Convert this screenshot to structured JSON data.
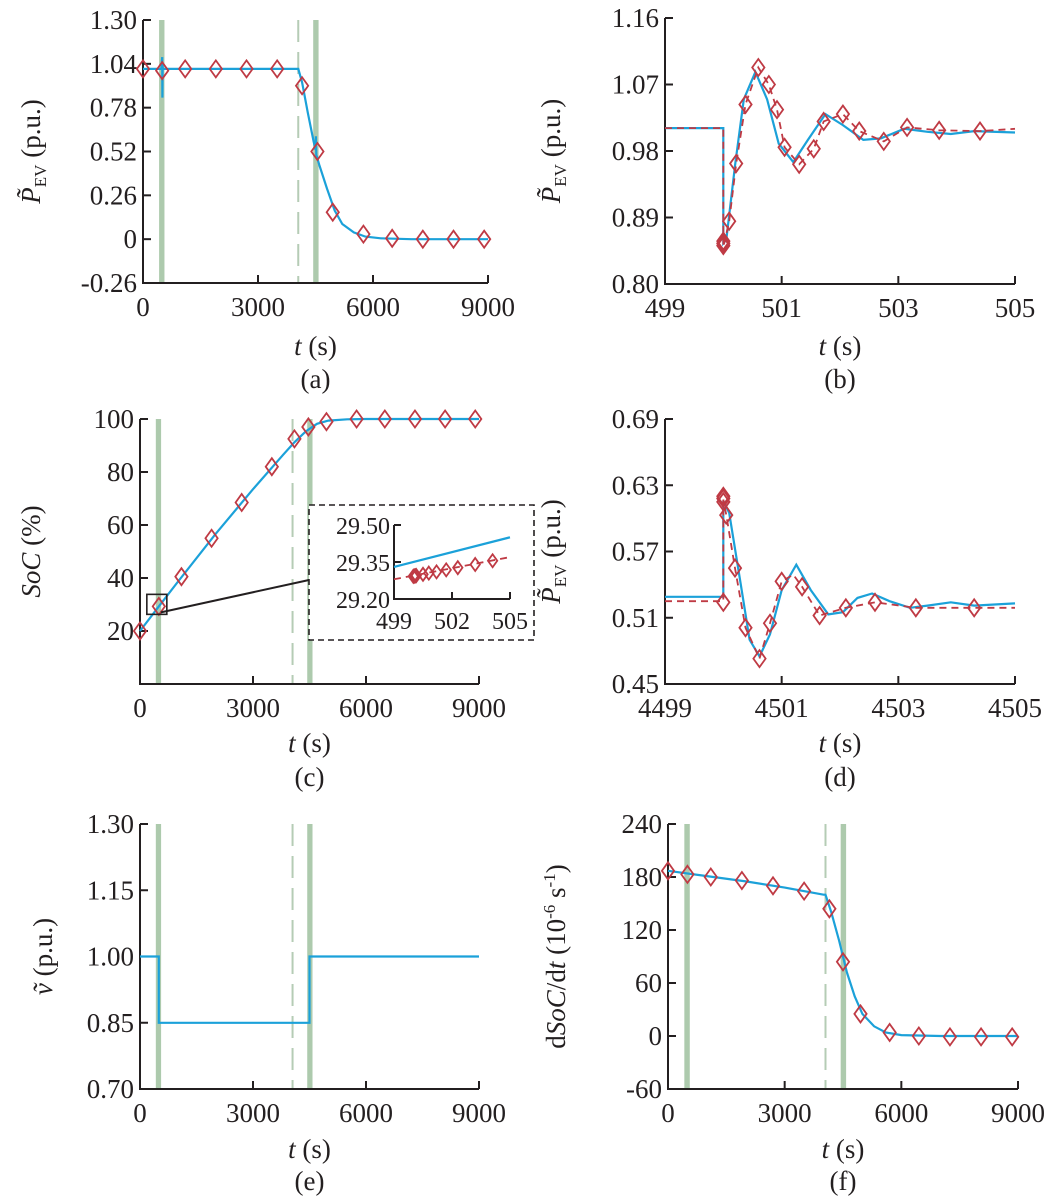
{
  "figure": {
    "colors": {
      "simulation_line": "#1ba1d9",
      "reference_line_markers": "#bf3a44",
      "event_band": "#a9c7a9",
      "event_dash": "#b5ccb5",
      "axes": "#231f20"
    }
  },
  "chart_data": [
    {
      "id": "a",
      "type": "line",
      "caption": "(a)",
      "xlabel": "t (s)",
      "ylabel": "P̃_EV (p.u.)",
      "xlim": [
        0,
        9000
      ],
      "ylim": [
        -0.26,
        1.3
      ],
      "xticks": [
        0,
        3000,
        6000,
        9000
      ],
      "xtick_labels": [
        "0",
        "3000",
        "6000",
        "9000"
      ],
      "yticks": [
        -0.26,
        0,
        0.26,
        0.52,
        0.78,
        1.04,
        1.3
      ],
      "ytick_labels": [
        "-0.26",
        "0",
        "0.26",
        "0.52",
        "0.78",
        "1.04",
        "1.30"
      ],
      "event_bands": [
        [
          420,
          560
        ],
        [
          4440,
          4580
        ]
      ],
      "event_dashes": [
        4050
      ],
      "series": [
        {
          "name": "simulation",
          "style": "solid",
          "x": [
            0,
            480,
            500,
            505,
            510,
            520,
            540,
            4050,
            4150,
            4300,
            4450,
            4500,
            4510,
            4520,
            4600,
            4800,
            5000,
            5200,
            5500,
            5800,
            6200,
            7000,
            8000,
            9000
          ],
          "y": [
            1.01,
            1.01,
            1.08,
            0.84,
            1.03,
            1.01,
            1.01,
            1.01,
            0.93,
            0.75,
            0.58,
            0.53,
            0.61,
            0.5,
            0.44,
            0.3,
            0.17,
            0.09,
            0.04,
            0.015,
            0.005,
            0.0,
            0.0,
            0.0
          ]
        },
        {
          "name": "reference",
          "style": "markers",
          "x": [
            0,
            500,
            1100,
            1900,
            2700,
            3500,
            4150,
            4550,
            4950,
            5750,
            6500,
            7300,
            8100,
            8900
          ],
          "y": [
            1.01,
            1.0,
            1.01,
            1.01,
            1.01,
            1.01,
            0.91,
            0.52,
            0.16,
            0.03,
            0.005,
            0.0,
            0.0,
            0.0
          ]
        }
      ]
    },
    {
      "id": "b",
      "type": "line",
      "caption": "(b)",
      "xlabel": "t (s)",
      "ylabel": "P̃_EV (p.u.)",
      "xlim": [
        499,
        505
      ],
      "ylim": [
        0.8,
        1.16
      ],
      "xticks": [
        499,
        501,
        503,
        505
      ],
      "xtick_labels": [
        "499",
        "501",
        "503",
        "505"
      ],
      "yticks": [
        0.8,
        0.89,
        0.98,
        1.07,
        1.16
      ],
      "ytick_labels": [
        "0.80",
        "0.89",
        "0.98",
        "1.07",
        "1.16"
      ],
      "series": [
        {
          "name": "simulation",
          "style": "solid",
          "x": [
            499,
            500.0,
            500.0,
            500.05,
            500.2,
            500.35,
            500.55,
            500.75,
            500.95,
            501.2,
            501.45,
            501.75,
            502.05,
            502.4,
            502.7,
            503.1,
            503.5,
            503.9,
            504.3,
            505
          ],
          "y": [
            1.011,
            1.011,
            0.855,
            0.86,
            0.96,
            1.05,
            1.087,
            1.05,
            0.99,
            0.965,
            0.995,
            1.03,
            1.015,
            0.995,
            0.997,
            1.01,
            1.006,
            1.003,
            1.007,
            1.005
          ]
        },
        {
          "name": "reference",
          "style": "dashed+markers",
          "x": [
            499,
            500.0,
            500.0,
            500.1,
            500.22,
            500.38,
            500.6,
            500.78,
            500.92,
            501.05,
            501.3,
            501.55,
            501.72,
            502.05,
            502.33,
            502.75,
            503.15,
            503.7,
            504.4,
            505
          ],
          "y": [
            1.011,
            1.011,
            0.85,
            0.885,
            0.963,
            1.043,
            1.093,
            1.07,
            1.036,
            0.985,
            0.962,
            0.983,
            1.02,
            1.03,
            1.007,
            0.993,
            1.012,
            1.008,
            1.007,
            1.01
          ],
          "marker_x": [
            500.0,
            500.0,
            500.0,
            500.1,
            500.22,
            500.38,
            500.6,
            500.78,
            500.92,
            501.05,
            501.3,
            501.55,
            501.72,
            502.05,
            502.33,
            502.75,
            503.15,
            503.7,
            504.4
          ],
          "marker_y": [
            0.852,
            0.855,
            0.858,
            0.885,
            0.963,
            1.043,
            1.093,
            1.07,
            1.036,
            0.985,
            0.962,
            0.983,
            1.02,
            1.03,
            1.007,
            0.993,
            1.012,
            1.008,
            1.007
          ]
        }
      ]
    },
    {
      "id": "c",
      "type": "line",
      "caption": "(c)",
      "xlabel": "t (s)",
      "ylabel": "SoC (%)",
      "xlim": [
        0,
        9000
      ],
      "ylim": [
        0,
        100
      ],
      "xticks": [
        0,
        3000,
        6000,
        9000
      ],
      "xtick_labels": [
        "0",
        "3000",
        "6000",
        "9000"
      ],
      "yticks": [
        20,
        40,
        60,
        80,
        100
      ],
      "ytick_labels": [
        "20",
        "40",
        "60",
        "80",
        "100"
      ],
      "event_bands": [
        [
          420,
          560
        ],
        [
          4440,
          4580
        ]
      ],
      "event_dashes": [
        4050
      ],
      "series": [
        {
          "name": "simulation",
          "style": "solid",
          "x": [
            0,
            500,
            1000,
            2000,
            3000,
            3800,
            4100,
            4400,
            4700,
            5000,
            5500,
            6000,
            9000
          ],
          "y": [
            20,
            29.3,
            38.5,
            56.5,
            73.5,
            86.5,
            91.2,
            95.3,
            98.2,
            99.4,
            99.9,
            100,
            100
          ]
        },
        {
          "name": "reference",
          "style": "markers",
          "x": [
            0,
            500,
            1100,
            1900,
            2700,
            3500,
            4100,
            4470,
            4950,
            5750,
            6500,
            7300,
            8100,
            8900
          ],
          "y": [
            20,
            29.3,
            40.5,
            55,
            68.5,
            82,
            92.5,
            97,
            99,
            100,
            100,
            100,
            100,
            100
          ]
        }
      ],
      "inset": {
        "xlim": [
          499,
          505
        ],
        "ylim": [
          29.2,
          29.5
        ],
        "xticks": [
          499,
          502,
          505
        ],
        "xtick_labels": [
          "499",
          "502",
          "505"
        ],
        "yticks": [
          29.2,
          29.35,
          29.5
        ],
        "ytick_labels": [
          "29.20",
          "29.35",
          "29.50"
        ],
        "series": [
          {
            "name": "simulation",
            "style": "solid",
            "x": [
              499,
              505
            ],
            "y": [
              29.33,
              29.45
            ]
          },
          {
            "name": "reference",
            "style": "dashed+markers",
            "x": [
              499,
              505
            ],
            "y": [
              29.28,
              29.37
            ],
            "marker_x": [
              500.0,
              500.05,
              500.1,
              500.15,
              500.5,
              500.8,
              501.2,
              501.7,
              502.3,
              503.2,
              504.1
            ],
            "marker_y": [
              29.292,
              29.293,
              29.294,
              29.295,
              29.3,
              29.305,
              29.31,
              29.318,
              29.327,
              29.34,
              29.355
            ]
          }
        ]
      }
    },
    {
      "id": "d",
      "type": "line",
      "caption": "(d)",
      "xlabel": "t (s)",
      "ylabel": "P̃_EV (p.u.)",
      "xlim": [
        4499,
        4505
      ],
      "ylim": [
        0.45,
        0.69
      ],
      "xticks": [
        4499,
        4501,
        4503,
        4505
      ],
      "xtick_labels": [
        "4499",
        "4501",
        "4503",
        "4505"
      ],
      "yticks": [
        0.45,
        0.51,
        0.57,
        0.63,
        0.69
      ],
      "ytick_labels": [
        "0.45",
        "0.51",
        "0.57",
        "0.63",
        "0.69"
      ],
      "series": [
        {
          "name": "simulation",
          "style": "solid",
          "x": [
            4499,
            4500.0,
            4500.0,
            4500.1,
            4500.3,
            4500.45,
            4500.62,
            4500.8,
            4501.0,
            4501.25,
            4501.5,
            4501.8,
            4502.05,
            4502.3,
            4502.55,
            4502.85,
            4503.2,
            4503.5,
            4503.9,
            4504.3,
            4505
          ],
          "y": [
            0.529,
            0.529,
            0.616,
            0.605,
            0.54,
            0.49,
            0.475,
            0.495,
            0.535,
            0.558,
            0.535,
            0.513,
            0.515,
            0.528,
            0.532,
            0.525,
            0.519,
            0.521,
            0.524,
            0.521,
            0.523
          ]
        },
        {
          "name": "reference",
          "style": "dashed+markers",
          "x": [
            4499,
            4500.0,
            4500.0,
            4500.05,
            4500.2,
            4500.38,
            4500.62,
            4500.8,
            4501.0,
            4501.2,
            4501.35,
            4501.65,
            4502.1,
            4502.6,
            4503.3,
            4504.3,
            4505
          ],
          "y": [
            0.525,
            0.525,
            0.617,
            0.603,
            0.555,
            0.501,
            0.473,
            0.505,
            0.543,
            0.549,
            0.538,
            0.512,
            0.519,
            0.524,
            0.519,
            0.519,
            0.519
          ],
          "marker_x": [
            4500.0,
            4500.0,
            4500.0,
            4500.0,
            4500.05,
            4500.2,
            4500.38,
            4500.62,
            4500.8,
            4501.0,
            4501.35,
            4501.65,
            4502.1,
            4502.6,
            4503.3,
            4504.3
          ],
          "marker_y": [
            0.524,
            0.615,
            0.618,
            0.62,
            0.603,
            0.555,
            0.501,
            0.473,
            0.505,
            0.543,
            0.538,
            0.512,
            0.519,
            0.524,
            0.519,
            0.519
          ]
        }
      ]
    },
    {
      "id": "e",
      "type": "line",
      "caption": "(e)",
      "xlabel": "t (s)",
      "ylabel": "ṽ (p.u.)",
      "xlim": [
        0,
        9000
      ],
      "ylim": [
        0.7,
        1.3
      ],
      "xticks": [
        0,
        3000,
        6000,
        9000
      ],
      "xtick_labels": [
        "0",
        "3000",
        "6000",
        "9000"
      ],
      "yticks": [
        0.7,
        0.85,
        1.0,
        1.15,
        1.3
      ],
      "ytick_labels": [
        "0.70",
        "0.85",
        "1.00",
        "1.15",
        "1.30"
      ],
      "event_bands": [
        [
          420,
          560
        ],
        [
          4440,
          4580
        ]
      ],
      "event_dashes": [
        4050
      ],
      "series": [
        {
          "name": "simulation",
          "style": "solid",
          "x": [
            0,
            500,
            500,
            4500,
            4500,
            9000
          ],
          "y": [
            1.0,
            1.0,
            0.85,
            0.85,
            1.0,
            1.0
          ]
        }
      ]
    },
    {
      "id": "f",
      "type": "line",
      "caption": "(f)",
      "xlabel": "t (s)",
      "ylabel": "dSoC/dt (10^-6 s^-1)",
      "xlim": [
        0,
        9000
      ],
      "ylim": [
        -60,
        240
      ],
      "xticks": [
        0,
        3000,
        6000,
        9000
      ],
      "xtick_labels": [
        "0",
        "3000",
        "6000",
        "9000"
      ],
      "yticks": [
        -60,
        0,
        60,
        120,
        180,
        240
      ],
      "ytick_labels": [
        "-60",
        "0",
        "60",
        "120",
        "180",
        "240"
      ],
      "event_bands": [
        [
          420,
          560
        ],
        [
          4440,
          4580
        ]
      ],
      "event_dashes": [
        4050
      ],
      "series": [
        {
          "name": "simulation",
          "style": "solid",
          "x": [
            0,
            1000,
            2000,
            3000,
            4000,
            4050,
            4200,
            4400,
            4600,
            4800,
            5000,
            5300,
            5600,
            6000,
            7000,
            9000
          ],
          "y": [
            187,
            181,
            175,
            168,
            160,
            160,
            140,
            108,
            72,
            45,
            25,
            11,
            4,
            1,
            0,
            0
          ]
        },
        {
          "name": "reference",
          "style": "markers",
          "x": [
            0,
            500,
            1100,
            1900,
            2700,
            3500,
            4150,
            4500,
            4950,
            5700,
            6450,
            7250,
            8050,
            8850
          ],
          "y": [
            187,
            183,
            180,
            176,
            170,
            164,
            144,
            84,
            25,
            4,
            0,
            -1,
            -1,
            -1
          ]
        }
      ]
    }
  ]
}
